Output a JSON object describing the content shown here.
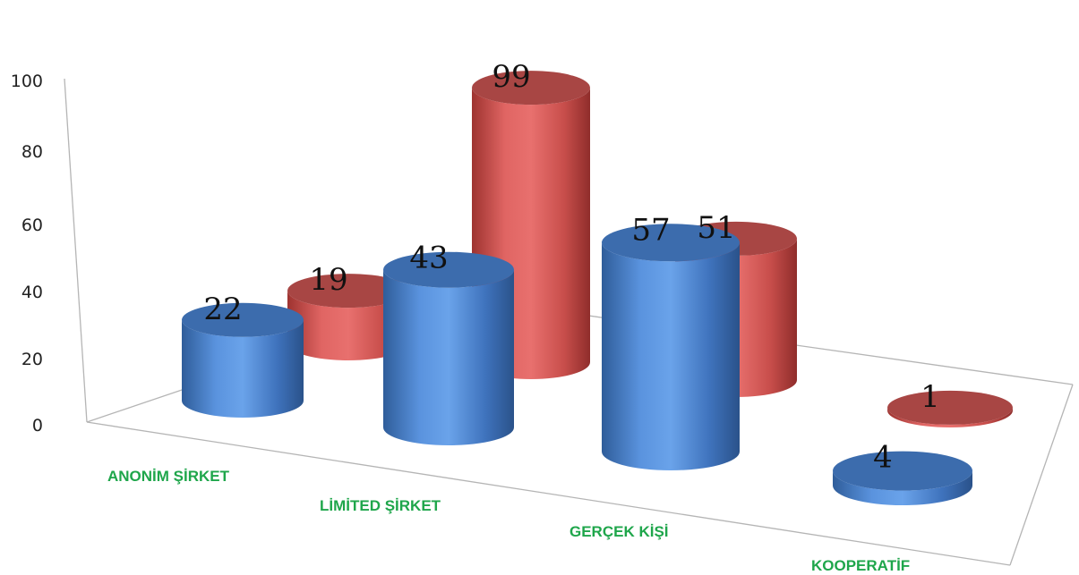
{
  "chart_data": {
    "type": "bar",
    "style": "3d-cylinder",
    "categories": [
      "ANONİM ŞİRKET",
      "LİMİTED ŞİRKET",
      "GERÇEK KİŞİ",
      "KOOPERATİF"
    ],
    "series": [
      {
        "values": [
          22,
          43,
          57,
          4
        ],
        "color": "#4F81BD"
      },
      {
        "values": [
          19,
          99,
          51,
          1
        ],
        "color": "#C0504D"
      }
    ],
    "y_ticks": [
      "0",
      "20",
      "40",
      "60",
      "80",
      "100"
    ],
    "ylim": [
      0,
      100
    ],
    "grid": false,
    "legend": "none",
    "category_label_color": "#1FA64B"
  }
}
